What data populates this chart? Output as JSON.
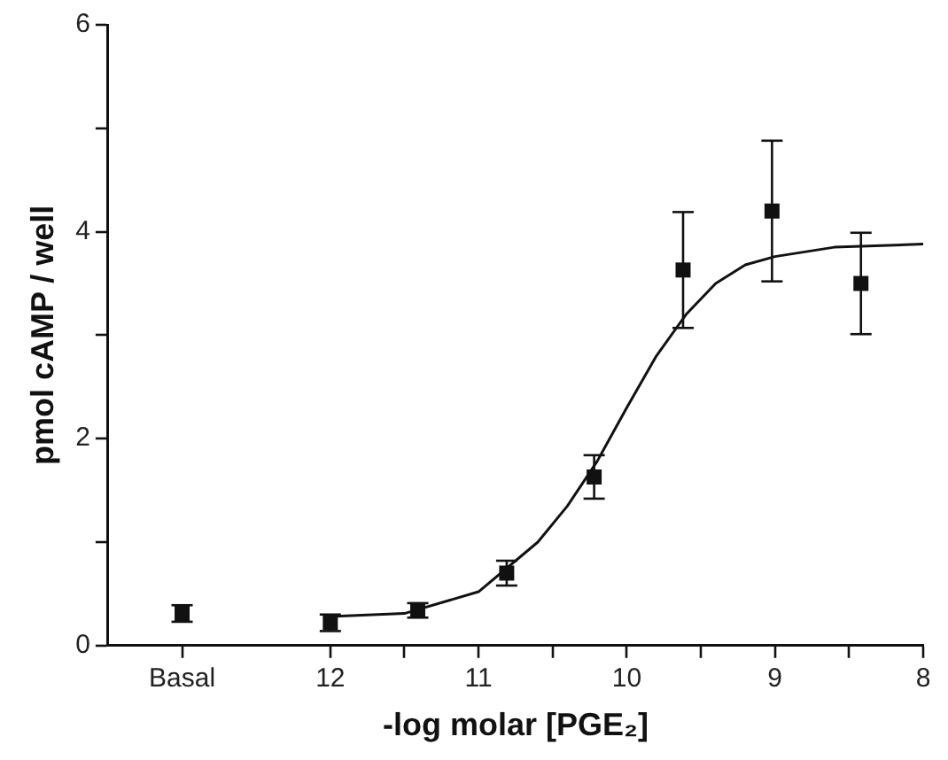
{
  "chart_data": {
    "type": "scatter",
    "xlabel": "-log molar [PGE₂]",
    "ylabel": "pmol cAMP / well",
    "xlim": [
      13.5,
      8
    ],
    "xticks": [
      {
        "value": 13,
        "label": "Basal"
      },
      12,
      {
        "value": 11.5,
        "label": null
      },
      11,
      {
        "value": 10.5,
        "label": null
      },
      10,
      {
        "value": 9.5,
        "label": null
      },
      9,
      {
        "value": 8.5,
        "label": null
      },
      8
    ],
    "ylim": [
      0,
      6
    ],
    "yticks": [
      0,
      {
        "value": 1,
        "label": null
      },
      2,
      {
        "value": 3,
        "label": null
      },
      4,
      {
        "value": 5,
        "label": null
      },
      6
    ],
    "grid": false,
    "legend": false,
    "marker": "square",
    "series": [
      {
        "color": "#111111",
        "x": [
          13
        ],
        "values": [
          0.31
        ],
        "errors": [
          0.08
        ]
      },
      {
        "color": "#111111",
        "x": [
          12,
          11.41,
          10.81,
          10.22,
          9.62,
          9.02,
          8.42
        ],
        "values": [
          0.22,
          0.34,
          0.7,
          1.63,
          3.63,
          4.2,
          3.5
        ],
        "errors": [
          0.08,
          0.07,
          0.12,
          0.21,
          0.56,
          0.68,
          0.49
        ]
      },
      {
        "type": "line",
        "color": "#111111",
        "marker": "none",
        "x": [
          12,
          11.5,
          11,
          10.6,
          10.4,
          10.2,
          10,
          9.8,
          9.6,
          9.4,
          9.2,
          9,
          8.6,
          8
        ],
        "values": [
          0.28,
          0.31,
          0.52,
          1.0,
          1.35,
          1.78,
          2.3,
          2.8,
          3.2,
          3.5,
          3.68,
          3.76,
          3.85,
          3.88
        ]
      }
    ]
  }
}
